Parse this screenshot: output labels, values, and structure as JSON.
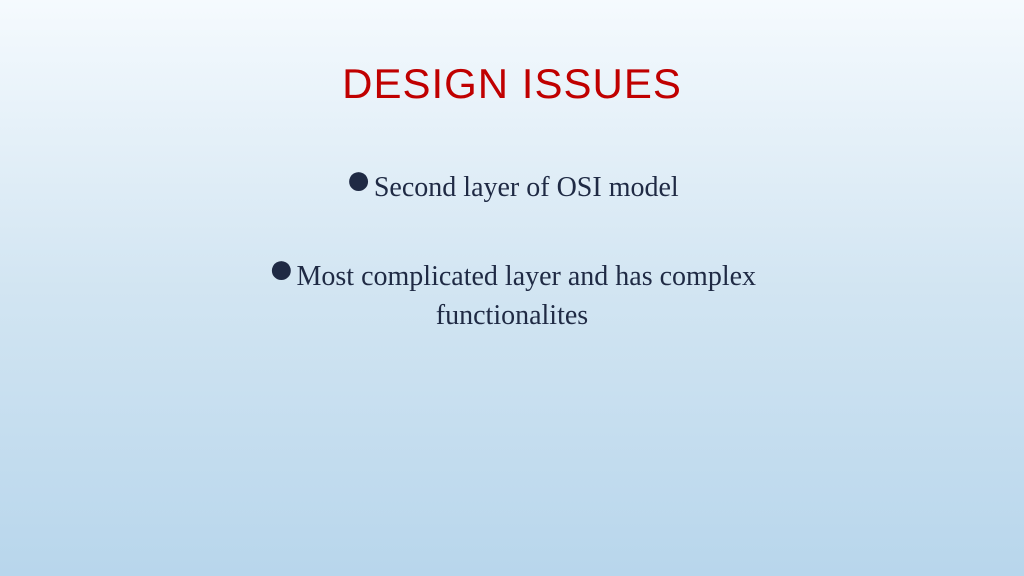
{
  "slide": {
    "title": "DESIGN ISSUES",
    "title_color": "#c00000",
    "title_fontsize": 42,
    "body_color": "#1f2a44",
    "body_fontsize": 28,
    "bullets": [
      {
        "lines": [
          "Second layer of OSI model"
        ]
      },
      {
        "lines": [
          "Most complicated layer and has complex",
          "functionalites"
        ]
      }
    ],
    "background": {
      "gradient_top": "#f5fafe",
      "gradient_mid": "#d2e5f2",
      "gradient_bottom": "#b8d6ec"
    }
  }
}
